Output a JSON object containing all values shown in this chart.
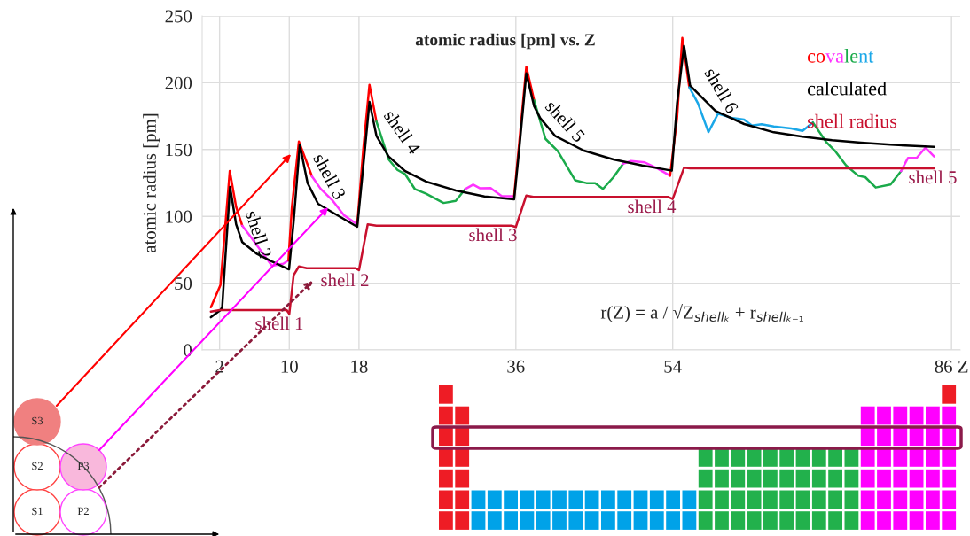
{
  "chart_data": {
    "type": "line",
    "title": "atomic radius [pm] vs. Z",
    "ylabel": "atomic radius [pm]",
    "xlim": [
      0,
      87
    ],
    "xticks": [
      2,
      10,
      18,
      36,
      54,
      {
        "value": 86,
        "label": "86 Z"
      }
    ],
    "ylim": [
      0,
      250
    ],
    "yticks": [
      0,
      50,
      100,
      150,
      200,
      250
    ],
    "grid": true,
    "series": [
      {
        "name": "covalent",
        "color": "#ff0000",
        "x": [
          1.0,
          2.1,
          3.17,
          3.9,
          4.6
        ],
        "values": [
          32,
          48.6,
          134,
          107,
          93
        ]
      },
      {
        "color": "#ff33ff",
        "x": [
          4.6,
          5.3,
          7.0,
          8.0,
          9.3,
          9.9
        ],
        "values": [
          93,
          87,
          72,
          63,
          64.5,
          67
        ]
      },
      {
        "color": "#ff0000",
        "x": [
          9.9,
          10.3,
          11.1,
          12.0,
          12.6
        ],
        "values": [
          67,
          107,
          156,
          140.5,
          130
        ]
      },
      {
        "color": "#ff33ff",
        "x": [
          12.6,
          13.6,
          15.0,
          16.3,
          17.8
        ],
        "values": [
          130,
          120.6,
          111.6,
          100.7,
          94
        ]
      },
      {
        "color": "#ff0000",
        "x": [
          17.8,
          18.5,
          19.2,
          20.0
        ],
        "values": [
          94,
          151,
          198.5,
          171
        ]
      },
      {
        "color": "#1aaa4a",
        "x": [
          20.0,
          21.4,
          22.4,
          23.3,
          24.4,
          25.7,
          27.7,
          29.1,
          30.2
        ],
        "values": [
          171,
          142.6,
          134.8,
          131.5,
          120.5,
          117,
          110,
          111.6,
          120.5
        ]
      },
      {
        "color": "#ff33ff",
        "x": [
          30.2,
          31.1,
          31.9,
          33.1,
          34.4,
          35.8
        ],
        "values": [
          120.5,
          123.8,
          121,
          121.2,
          115,
          115
        ]
      },
      {
        "color": "#ff0000",
        "x": [
          35.8,
          36.4,
          37.2,
          38.1
        ],
        "values": [
          115,
          155.8,
          212,
          186.8
        ]
      },
      {
        "color": "#1aaa4a",
        "x": [
          38.1,
          39.4,
          40.8,
          42.8,
          44.1,
          45.1,
          46.0,
          47.2,
          48.3
        ],
        "values": [
          186.8,
          158,
          149,
          127,
          124.9,
          124.9,
          120.5,
          129.3,
          139.3
        ]
      },
      {
        "color": "#ff33ff",
        "x": [
          48.3,
          49.2,
          50.8,
          52.2,
          53.7
        ],
        "values": [
          139.3,
          141.4,
          140.4,
          136,
          130.4
        ]
      },
      {
        "color": "#ff0000",
        "x": [
          53.7,
          54.5,
          55.1,
          55.9
        ],
        "values": [
          130.4,
          173.5,
          233.6,
          196.7
        ]
      },
      {
        "color": "#1aa7e8",
        "x": [
          55.9,
          56.9,
          58.1,
          59.2,
          60.9,
          62.2,
          63.1,
          64.2,
          65.6,
          67.6,
          68.9,
          70.1
        ],
        "values": [
          196.7,
          184.6,
          163,
          176.8,
          173.5,
          172.4,
          168,
          169,
          167.3,
          165.8,
          164,
          170.2
        ]
      },
      {
        "color": "#1aaa4a",
        "x": [
          70.1,
          71.6,
          72.6,
          73.9,
          75.3,
          76.1,
          77.3,
          79.0,
          80.2
        ],
        "values": [
          170.2,
          155.8,
          149.2,
          138.1,
          130.4,
          129.3,
          121.6,
          123.8,
          133.8
        ]
      },
      {
        "color": "#ff33ff",
        "x": [
          80.2,
          81.0,
          82.0,
          83.0,
          84.0
        ],
        "values": [
          133.8,
          143.7,
          143.7,
          151.4,
          144.8
        ]
      },
      {
        "name": "calculated",
        "color": "#000000",
        "x": [
          1.0,
          2.1,
          2.3,
          2.6,
          3.2,
          3.9,
          4.6,
          6.3,
          8.0,
          9.97,
          10.5,
          11.2,
          12.1,
          13.3,
          15.0,
          17.8,
          18.5,
          19.2,
          20.0,
          21.4,
          23.3,
          25.7,
          29.1,
          32.4,
          35.8,
          36.4,
          37.2,
          38.1,
          38.8,
          40.5,
          43.8,
          47.2,
          50.5,
          53.9,
          54.5,
          55.3,
          56.0,
          58.9,
          62.2,
          65.6,
          68.9,
          72.3,
          75.6,
          79.0,
          84.0
        ],
        "values": [
          24.5,
          29.8,
          32,
          63,
          122,
          94,
          80.7,
          71.8,
          66.3,
          60.3,
          96,
          153.6,
          124.9,
          109.4,
          102.8,
          92.2,
          138,
          185.7,
          160.3,
          144.8,
          133.8,
          126,
          119.4,
          114.9,
          112.7,
          151,
          207,
          182.4,
          173.5,
          160.3,
          149.2,
          142.6,
          138.1,
          134.2,
          184.5,
          227.6,
          197.8,
          179,
          169.1,
          162.9,
          159.6,
          157,
          155.2,
          153.6,
          152.1
        ]
      },
      {
        "name": "shell radius",
        "color": "#c8102e",
        "x": [
          1.0,
          2.0,
          9.7,
          10.0,
          10.5,
          11.1,
          12.0,
          17.6,
          18.0,
          19.0,
          20.0,
          35.5,
          36.0,
          37.2,
          38.0,
          53.5,
          54.0,
          55.3,
          56.0,
          84.0
        ],
        "values": [
          28.7,
          29.8,
          29.8,
          27,
          56,
          62.5,
          61.2,
          61.2,
          59.7,
          94,
          93,
          93,
          92,
          115.6,
          114.5,
          114.5,
          113,
          136.4,
          136,
          136
        ]
      }
    ],
    "annotations": [
      "shell 2",
      "shell 3",
      "shell 4",
      "shell 5",
      "shell 6",
      "shell 1",
      "shell 2",
      "shell 3",
      "shell 4",
      "shell 5",
      "r(Z) = a / √Z$_{shellₖ}$ + r$_{shellₖ₋₁}$",
      "S1",
      "S2",
      "S3",
      "P2",
      "P3"
    ]
  }
}
